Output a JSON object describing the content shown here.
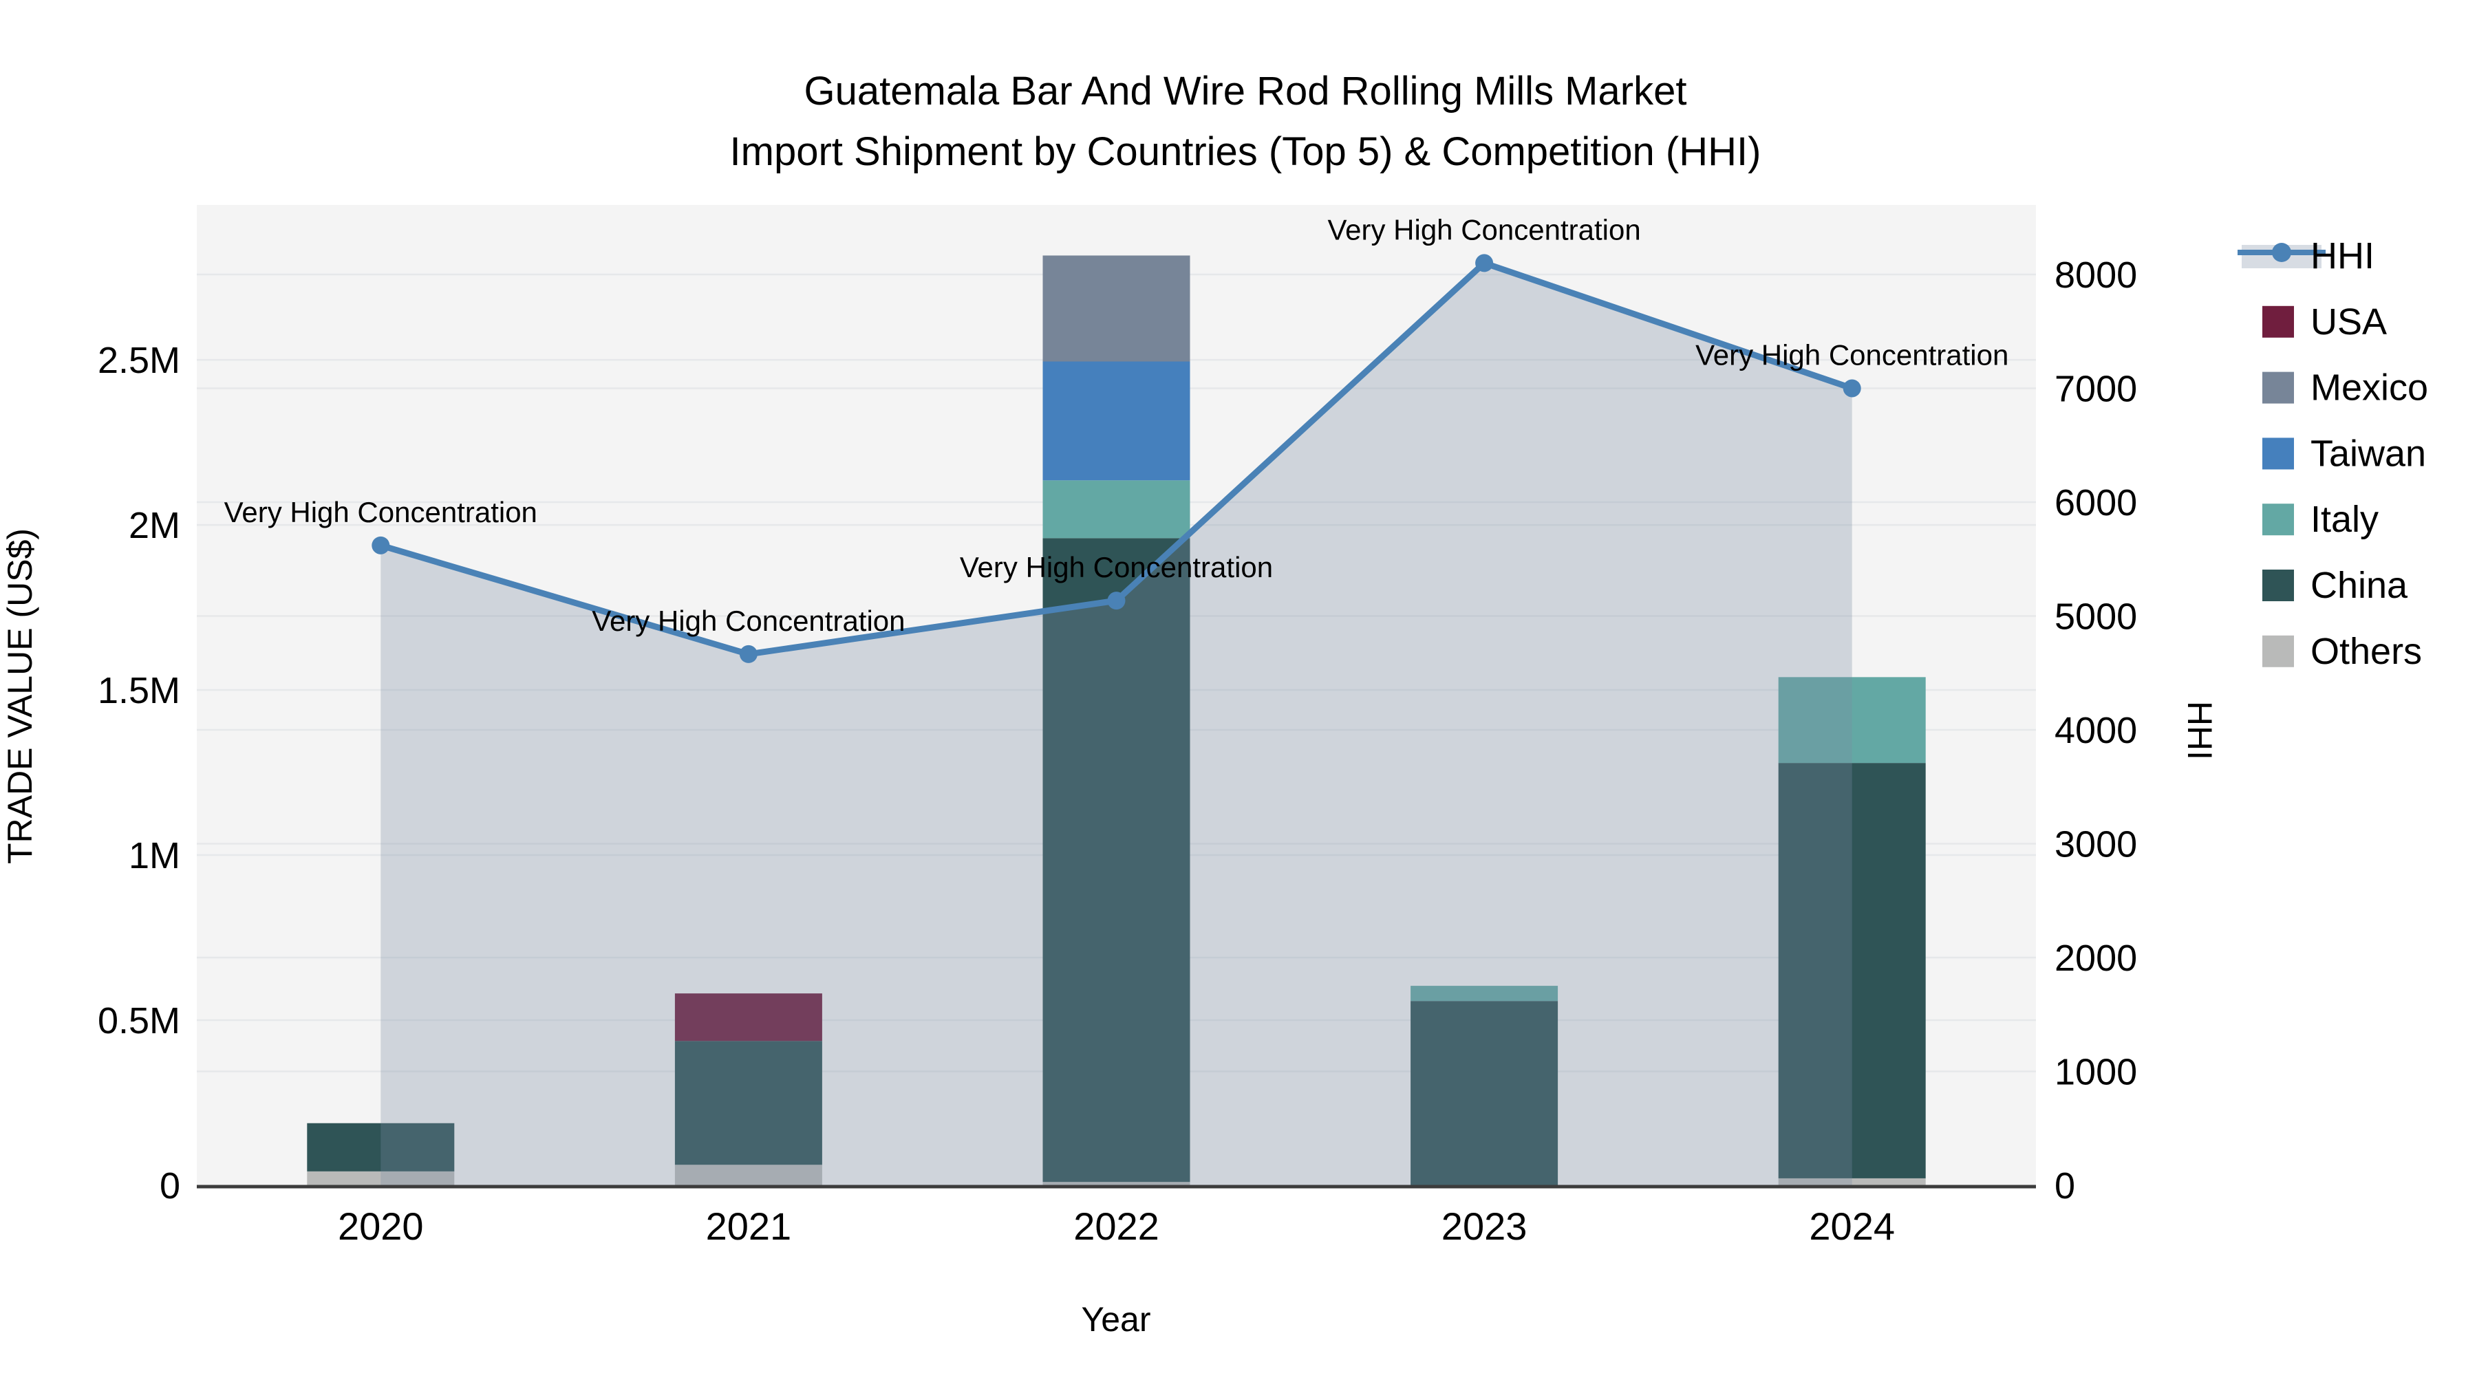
{
  "title": {
    "line1": "Guatemala Bar And Wire Rod Rolling Mills Market",
    "line2": "Import Shipment by Countries (Top 5) & Competition (HHI)"
  },
  "axes": {
    "x": {
      "label": "Year",
      "tick_labels": [
        "2020",
        "2021",
        "2022",
        "2023",
        "2024"
      ]
    },
    "y_left": {
      "label": "TRADE VALUE (US$)",
      "ticks": [
        {
          "value": 0,
          "label": "0"
        },
        {
          "value": 500000,
          "label": "0.5M"
        },
        {
          "value": 1000000,
          "label": "1M"
        },
        {
          "value": 1500000,
          "label": "1.5M"
        },
        {
          "value": 2000000,
          "label": "2M"
        },
        {
          "value": 2500000,
          "label": "2.5M"
        }
      ]
    },
    "y_right": {
      "label": "HHI",
      "ticks": [
        {
          "value": 0,
          "label": "0"
        },
        {
          "value": 1000,
          "label": "1000"
        },
        {
          "value": 2000,
          "label": "2000"
        },
        {
          "value": 3000,
          "label": "3000"
        },
        {
          "value": 4000,
          "label": "4000"
        },
        {
          "value": 5000,
          "label": "5000"
        },
        {
          "value": 6000,
          "label": "6000"
        },
        {
          "value": 7000,
          "label": "7000"
        },
        {
          "value": 8000,
          "label": "8000"
        }
      ]
    }
  },
  "legend": {
    "items": [
      {
        "key": "HHI",
        "label": "HHI"
      },
      {
        "key": "USA",
        "label": "USA"
      },
      {
        "key": "Mexico",
        "label": "Mexico"
      },
      {
        "key": "Taiwan",
        "label": "Taiwan"
      },
      {
        "key": "Italy",
        "label": "Italy"
      },
      {
        "key": "China",
        "label": "China"
      },
      {
        "key": "Others",
        "label": "Others"
      }
    ]
  },
  "chart_data": {
    "type": "combo",
    "subtype": "stacked-bar + line with area fill, dual y-axis",
    "title": "Guatemala Bar And Wire Rod Rolling Mills Market — Import Shipment by Countries (Top 5) & Competition (HHI)",
    "categories": [
      "2020",
      "2021",
      "2022",
      "2023",
      "2024"
    ],
    "xlabel": "Year",
    "y_left": {
      "label": "TRADE VALUE (US$)",
      "range": [
        0,
        2969000
      ]
    },
    "y_right": {
      "label": "HHI",
      "range": [
        0,
        8610
      ]
    },
    "bar_series": [
      {
        "name": "USA",
        "color": "#701E3E",
        "values": [
          0,
          144000,
          0,
          0,
          0
        ]
      },
      {
        "name": "Mexico",
        "color": "#778598",
        "values": [
          0,
          0,
          321000,
          0,
          0
        ]
      },
      {
        "name": "Taiwan",
        "color": "#4580BD",
        "values": [
          0,
          0,
          360000,
          0,
          0
        ]
      },
      {
        "name": "Italy",
        "color": "#63A8A4",
        "values": [
          0,
          0,
          175000,
          46000,
          260000
        ]
      },
      {
        "name": "China",
        "color": "#2F5456",
        "values": [
          146000,
          375000,
          1950000,
          558000,
          1258000
        ]
      },
      {
        "name": "Others",
        "color": "#B9BAB9",
        "values": [
          42000,
          62000,
          10000,
          0,
          21000
        ]
      }
    ],
    "stack_order_bottom_to_top": [
      "Others",
      "China",
      "Italy",
      "Taiwan",
      "Mexico",
      "USA"
    ],
    "line_series": {
      "name": "HHI",
      "color": "#4A82B6",
      "marker": "circle",
      "area_fill": "rgba(122,140,163,0.30)",
      "values": [
        5620,
        4665,
        5135,
        8100,
        7000
      ]
    },
    "annotations": [
      {
        "category": "2020",
        "text": "Very High Concentration"
      },
      {
        "category": "2021",
        "text": "Very High Concentration"
      },
      {
        "category": "2022",
        "text": "Very High Concentration"
      },
      {
        "category": "2023",
        "text": "Very High Concentration"
      },
      {
        "category": "2024",
        "text": "Very High Concentration"
      }
    ],
    "grid": true,
    "legend_position": "outside upper right",
    "legend_entries": [
      "HHI",
      "USA",
      "Mexico",
      "Taiwan",
      "Italy",
      "China",
      "Others"
    ]
  },
  "style": {
    "fig_bg": "#FFFFFF",
    "plot_bg": "#F4F4F4",
    "grid_color": "#E6E8EA",
    "spine_color": "#3C3C3C",
    "text_color": "#000000"
  }
}
